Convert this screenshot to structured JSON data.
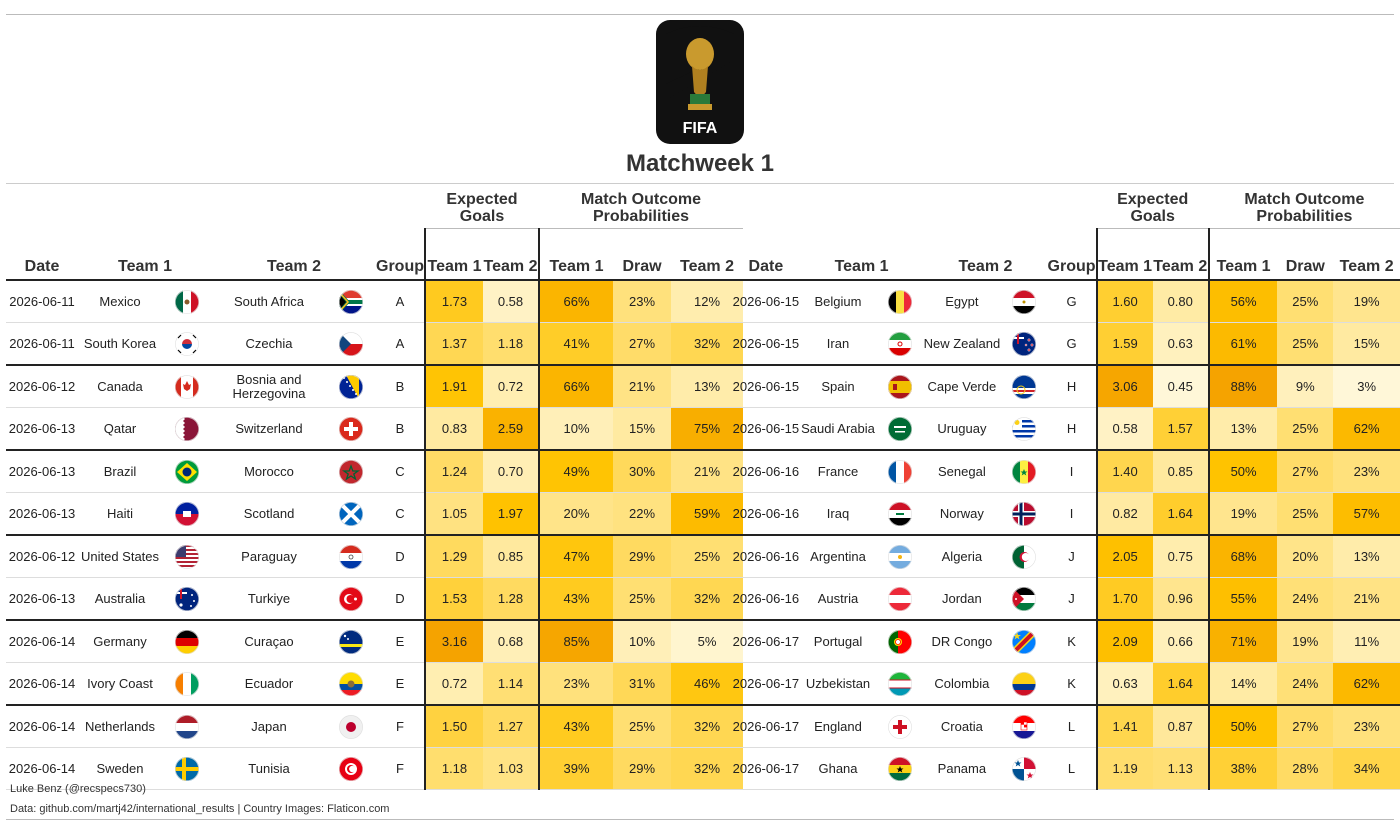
{
  "title": "Matchweek 1",
  "logo_text": "FIFA",
  "footer": {
    "credit": "Luke Benz (@recspecs730)",
    "source": "Data: github.com/martj42/international_results | Country Images: Flaticon.com"
  },
  "headers": {
    "date": "Date",
    "team1": "Team 1",
    "team2": "Team 2",
    "group": "Group",
    "xg_span": "Expected Goals",
    "prob_span": "Match Outcome Probabilities",
    "xg_team1": "Team 1",
    "xg_team2": "Team 2",
    "p_team1": "Team 1",
    "p_draw": "Draw",
    "p_team2": "Team 2"
  },
  "colors": {
    "high": "#f5a300",
    "mid": "#ffc300",
    "low": "#fff7d8",
    "rule": "#222222"
  },
  "chart_data": {
    "type": "table",
    "title": "Matchweek 1",
    "columns": [
      "Date",
      "Team 1",
      "Team 2",
      "Group",
      "Expected Goals Team 1",
      "Expected Goals Team 2",
      "Team 1",
      "Draw",
      "Team 2"
    ],
    "matches": [
      {
        "date": "2026-06-11",
        "team1": "Mexico",
        "team2": "South Africa",
        "group": "A",
        "xg1": "1.73",
        "xg2": "0.58",
        "p1": "66%",
        "pd": "23%",
        "p2": "12%",
        "flag1": "mexico",
        "flag2": "south-africa"
      },
      {
        "date": "2026-06-11",
        "team1": "South Korea",
        "team2": "Czechia",
        "group": "A",
        "xg1": "1.37",
        "xg2": "1.18",
        "p1": "41%",
        "pd": "27%",
        "p2": "32%",
        "flag1": "south-korea",
        "flag2": "czechia"
      },
      {
        "date": "2026-06-12",
        "team1": "Canada",
        "team2": "Bosnia and Herzegovina",
        "group": "B",
        "xg1": "1.91",
        "xg2": "0.72",
        "p1": "66%",
        "pd": "21%",
        "p2": "13%",
        "flag1": "canada",
        "flag2": "bosnia"
      },
      {
        "date": "2026-06-13",
        "team1": "Qatar",
        "team2": "Switzerland",
        "group": "B",
        "xg1": "0.83",
        "xg2": "2.59",
        "p1": "10%",
        "pd": "15%",
        "p2": "75%",
        "flag1": "qatar",
        "flag2": "switzerland"
      },
      {
        "date": "2026-06-13",
        "team1": "Brazil",
        "team2": "Morocco",
        "group": "C",
        "xg1": "1.24",
        "xg2": "0.70",
        "p1": "49%",
        "pd": "30%",
        "p2": "21%",
        "flag1": "brazil",
        "flag2": "morocco"
      },
      {
        "date": "2026-06-13",
        "team1": "Haiti",
        "team2": "Scotland",
        "group": "C",
        "xg1": "1.05",
        "xg2": "1.97",
        "p1": "20%",
        "pd": "22%",
        "p2": "59%",
        "flag1": "haiti",
        "flag2": "scotland"
      },
      {
        "date": "2026-06-12",
        "team1": "United States",
        "team2": "Paraguay",
        "group": "D",
        "xg1": "1.29",
        "xg2": "0.85",
        "p1": "47%",
        "pd": "29%",
        "p2": "25%",
        "flag1": "usa",
        "flag2": "paraguay"
      },
      {
        "date": "2026-06-13",
        "team1": "Australia",
        "team2": "Turkiye",
        "group": "D",
        "xg1": "1.53",
        "xg2": "1.28",
        "p1": "43%",
        "pd": "25%",
        "p2": "32%",
        "flag1": "australia",
        "flag2": "turkiye"
      },
      {
        "date": "2026-06-14",
        "team1": "Germany",
        "team2": "Curaçao",
        "group": "E",
        "xg1": "3.16",
        "xg2": "0.68",
        "p1": "85%",
        "pd": "10%",
        "p2": "5%",
        "flag1": "germany",
        "flag2": "curacao"
      },
      {
        "date": "2026-06-14",
        "team1": "Ivory Coast",
        "team2": "Ecuador",
        "group": "E",
        "xg1": "0.72",
        "xg2": "1.14",
        "p1": "23%",
        "pd": "31%",
        "p2": "46%",
        "flag1": "ivory-coast",
        "flag2": "ecuador"
      },
      {
        "date": "2026-06-14",
        "team1": "Netherlands",
        "team2": "Japan",
        "group": "F",
        "xg1": "1.50",
        "xg2": "1.27",
        "p1": "43%",
        "pd": "25%",
        "p2": "32%",
        "flag1": "netherlands",
        "flag2": "japan"
      },
      {
        "date": "2026-06-14",
        "team1": "Sweden",
        "team2": "Tunisia",
        "group": "F",
        "xg1": "1.18",
        "xg2": "1.03",
        "p1": "39%",
        "pd": "29%",
        "p2": "32%",
        "flag1": "sweden",
        "flag2": "tunisia"
      },
      {
        "date": "2026-06-15",
        "team1": "Belgium",
        "team2": "Egypt",
        "group": "G",
        "xg1": "1.60",
        "xg2": "0.80",
        "p1": "56%",
        "pd": "25%",
        "p2": "19%",
        "flag1": "belgium",
        "flag2": "egypt"
      },
      {
        "date": "2026-06-15",
        "team1": "Iran",
        "team2": "New Zealand",
        "group": "G",
        "xg1": "1.59",
        "xg2": "0.63",
        "p1": "61%",
        "pd": "25%",
        "p2": "15%",
        "flag1": "iran",
        "flag2": "new-zealand"
      },
      {
        "date": "2026-06-15",
        "team1": "Spain",
        "team2": "Cape Verde",
        "group": "H",
        "xg1": "3.06",
        "xg2": "0.45",
        "p1": "88%",
        "pd": "9%",
        "p2": "3%",
        "flag1": "spain",
        "flag2": "cape-verde"
      },
      {
        "date": "2026-06-15",
        "team1": "Saudi Arabia",
        "team2": "Uruguay",
        "group": "H",
        "xg1": "0.58",
        "xg2": "1.57",
        "p1": "13%",
        "pd": "25%",
        "p2": "62%",
        "flag1": "saudi-arabia",
        "flag2": "uruguay"
      },
      {
        "date": "2026-06-16",
        "team1": "France",
        "team2": "Senegal",
        "group": "I",
        "xg1": "1.40",
        "xg2": "0.85",
        "p1": "50%",
        "pd": "27%",
        "p2": "23%",
        "flag1": "france",
        "flag2": "senegal"
      },
      {
        "date": "2026-06-16",
        "team1": "Iraq",
        "team2": "Norway",
        "group": "I",
        "xg1": "0.82",
        "xg2": "1.64",
        "p1": "19%",
        "pd": "25%",
        "p2": "57%",
        "flag1": "iraq",
        "flag2": "norway"
      },
      {
        "date": "2026-06-16",
        "team1": "Argentina",
        "team2": "Algeria",
        "group": "J",
        "xg1": "2.05",
        "xg2": "0.75",
        "p1": "68%",
        "pd": "20%",
        "p2": "13%",
        "flag1": "argentina",
        "flag2": "algeria"
      },
      {
        "date": "2026-06-16",
        "team1": "Austria",
        "team2": "Jordan",
        "group": "J",
        "xg1": "1.70",
        "xg2": "0.96",
        "p1": "55%",
        "pd": "24%",
        "p2": "21%",
        "flag1": "austria",
        "flag2": "jordan"
      },
      {
        "date": "2026-06-17",
        "team1": "Portugal",
        "team2": "DR Congo",
        "group": "K",
        "xg1": "2.09",
        "xg2": "0.66",
        "p1": "71%",
        "pd": "19%",
        "p2": "11%",
        "flag1": "portugal",
        "flag2": "dr-congo"
      },
      {
        "date": "2026-06-17",
        "team1": "Uzbekistan",
        "team2": "Colombia",
        "group": "K",
        "xg1": "0.63",
        "xg2": "1.64",
        "p1": "14%",
        "pd": "24%",
        "p2": "62%",
        "flag1": "uzbekistan",
        "flag2": "colombia"
      },
      {
        "date": "2026-06-17",
        "team1": "England",
        "team2": "Croatia",
        "group": "L",
        "xg1": "1.41",
        "xg2": "0.87",
        "p1": "50%",
        "pd": "27%",
        "p2": "23%",
        "flag1": "england",
        "flag2": "croatia"
      },
      {
        "date": "2026-06-17",
        "team1": "Ghana",
        "team2": "Panama",
        "group": "L",
        "xg1": "1.19",
        "xg2": "1.13",
        "p1": "38%",
        "pd": "28%",
        "p2": "34%",
        "flag1": "ghana",
        "flag2": "panama"
      }
    ]
  }
}
